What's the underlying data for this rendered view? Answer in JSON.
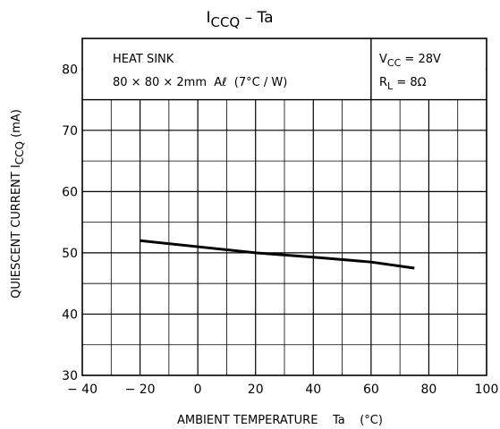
{
  "chart_data": {
    "type": "line",
    "title": {
      "main": "I",
      "sub": "CCQ",
      "rest": " – Ta"
    },
    "xlabel": "AMBIENT TEMPERATURE    Ta    (°C)",
    "ylabel": {
      "main": "QUIESCENT CURRENT   I",
      "sub": "CCQ",
      "rest": "   (mA)"
    },
    "xlim": [
      -40,
      100
    ],
    "ylim": [
      30,
      85
    ],
    "x_ticks": [
      -40,
      -20,
      0,
      20,
      40,
      60,
      80,
      100
    ],
    "x_tick_labels": [
      "− 40",
      "− 20",
      "0",
      "20",
      "40",
      "60",
      "80",
      "100"
    ],
    "y_ticks": [
      30,
      40,
      50,
      60,
      70,
      80
    ],
    "y_tick_labels": [
      "30",
      "40",
      "50",
      "60",
      "70",
      "80"
    ],
    "grid": true,
    "series": [
      {
        "x": [
          -20,
          0,
          20,
          40,
          60,
          75
        ],
        "y": [
          52.0,
          51.0,
          50.0,
          49.3,
          48.5,
          47.5
        ]
      }
    ],
    "annotations": {
      "heat_sink_line1": "HEAT SINK",
      "heat_sink_line2": "80 × 80 × 2mm  Aℓ  (7°C / W)",
      "vcc": {
        "main": "V",
        "sub": "CC",
        "rest": " = 28V"
      },
      "rl": {
        "main": "R",
        "sub": "L",
        "rest": " = 8Ω"
      }
    },
    "colors": {
      "line": "#000000",
      "grid": "#000000",
      "background": "#ffffff"
    }
  }
}
